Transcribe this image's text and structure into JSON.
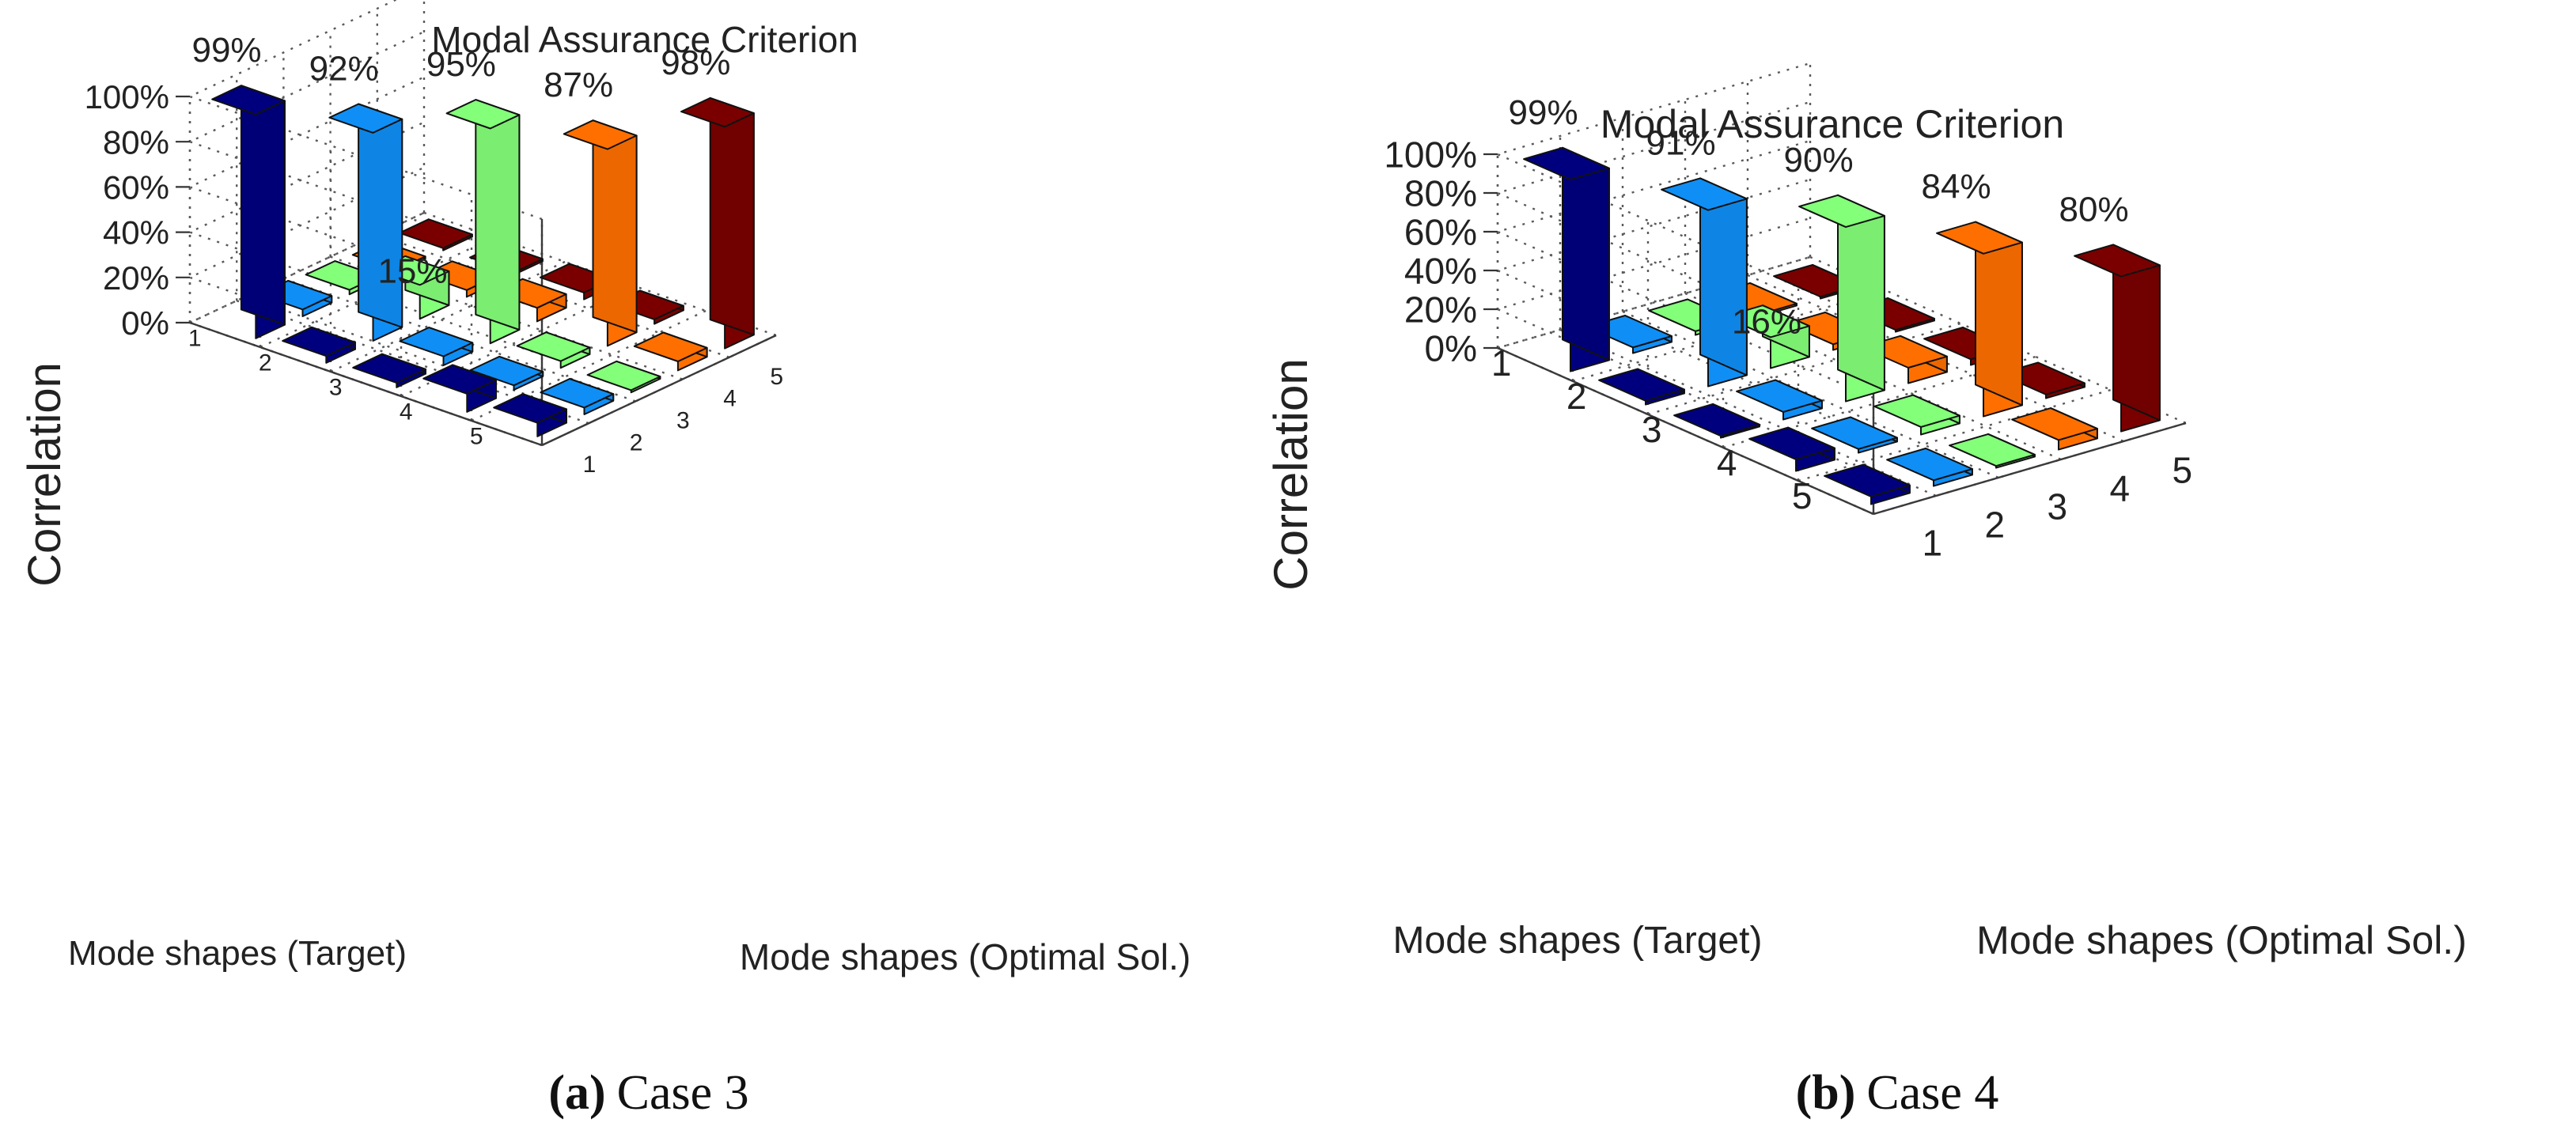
{
  "chart_data": [
    {
      "type": "bar3d",
      "panel_label": "(a)",
      "caption": "Case 3",
      "title": "Modal Assurance Criterion",
      "xlabel": "Mode shapes (Target)",
      "ylabel": "Mode shapes (Optimal Sol.)",
      "zlabel": "Correlation",
      "x_ticks": [
        "1",
        "2",
        "3",
        "4",
        "5"
      ],
      "y_ticks": [
        "1",
        "2",
        "3",
        "4",
        "5"
      ],
      "z_ticks": [
        "0%",
        "20%",
        "40%",
        "60%",
        "80%",
        "100%"
      ],
      "zlim": [
        0,
        100
      ],
      "series_colors": [
        "#00007f",
        "#0f8ff5",
        "#84ff7a",
        "#ff6f00",
        "#7a0000"
      ],
      "matrix": [
        [
          99,
          3,
          2,
          1,
          1
        ],
        [
          3,
          92,
          15,
          3,
          1
        ],
        [
          2,
          4,
          95,
          6,
          3
        ],
        [
          8,
          2,
          3,
          87,
          2
        ],
        [
          6,
          3,
          1,
          4,
          98
        ]
      ],
      "data_labels": [
        {
          "row": 1,
          "col": 1,
          "text": "99%"
        },
        {
          "row": 2,
          "col": 2,
          "text": "92%"
        },
        {
          "row": 3,
          "col": 3,
          "text": "95%"
        },
        {
          "row": 4,
          "col": 4,
          "text": "87%"
        },
        {
          "row": 5,
          "col": 5,
          "text": "98%"
        },
        {
          "row": 2,
          "col": 3,
          "text": "15%"
        }
      ]
    },
    {
      "type": "bar3d",
      "panel_label": "(b)",
      "caption": "Case 4",
      "title": "Modal Assurance Criterion",
      "xlabel": "Mode shapes (Target)",
      "ylabel": "Mode shapes (Optimal Sol.)",
      "zlabel": "Correlation",
      "x_ticks": [
        "1",
        "2",
        "3",
        "4",
        "5"
      ],
      "y_ticks": [
        "1",
        "2",
        "3",
        "4",
        "5"
      ],
      "z_ticks": [
        "0%",
        "20%",
        "40%",
        "60%",
        "80%",
        "100%"
      ],
      "zlim": [
        0,
        100
      ],
      "series_colors": [
        "#00007f",
        "#0f8ff5",
        "#84ff7a",
        "#ff6f00",
        "#7a0000"
      ],
      "matrix": [
        [
          99,
          3,
          2,
          1,
          1
        ],
        [
          2,
          91,
          16,
          3,
          1
        ],
        [
          1,
          4,
          90,
          8,
          3
        ],
        [
          6,
          2,
          4,
          84,
          2
        ],
        [
          4,
          3,
          1,
          5,
          80
        ]
      ],
      "data_labels": [
        {
          "row": 1,
          "col": 1,
          "text": "99%"
        },
        {
          "row": 2,
          "col": 2,
          "text": "91%"
        },
        {
          "row": 3,
          "col": 3,
          "text": "90%"
        },
        {
          "row": 4,
          "col": 4,
          "text": "84%"
        },
        {
          "row": 5,
          "col": 5,
          "text": "80%"
        },
        {
          "row": 2,
          "col": 3,
          "text": "16%"
        }
      ]
    }
  ]
}
